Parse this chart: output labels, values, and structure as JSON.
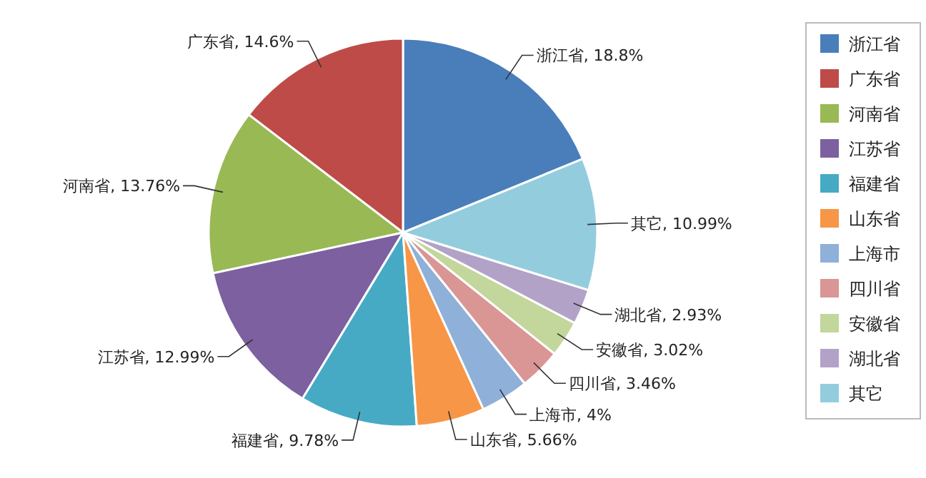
{
  "chart_data": {
    "type": "pie",
    "legend": "right",
    "categories": [
      "浙江省",
      "广东省",
      "河南省",
      "江苏省",
      "福建省",
      "山东省",
      "上海市",
      "四川省",
      "安徽省",
      "湖北省",
      "其它"
    ],
    "values": [
      18.8,
      14.6,
      13.76,
      12.99,
      9.78,
      5.66,
      4,
      3.46,
      3.02,
      2.93,
      10.99
    ],
    "value_labels": [
      "浙江省, 18.8%",
      "广东省, 14.6%",
      "河南省, 13.76%",
      "江苏省, 12.99%",
      "福建省, 9.78%",
      "山东省, 5.66%",
      "上海市, 4%",
      "四川省, 3.46%",
      "安徽省, 3.02%",
      "湖北省, 2.93%",
      "其它, 10.99%"
    ],
    "colors": [
      "#4a7ebb",
      "#be4b48",
      "#98b954",
      "#7d60a0",
      "#46aac5",
      "#f79646",
      "#8fb0d8",
      "#d99694",
      "#c3d69b",
      "#b3a2c7",
      "#93cddd"
    ]
  }
}
